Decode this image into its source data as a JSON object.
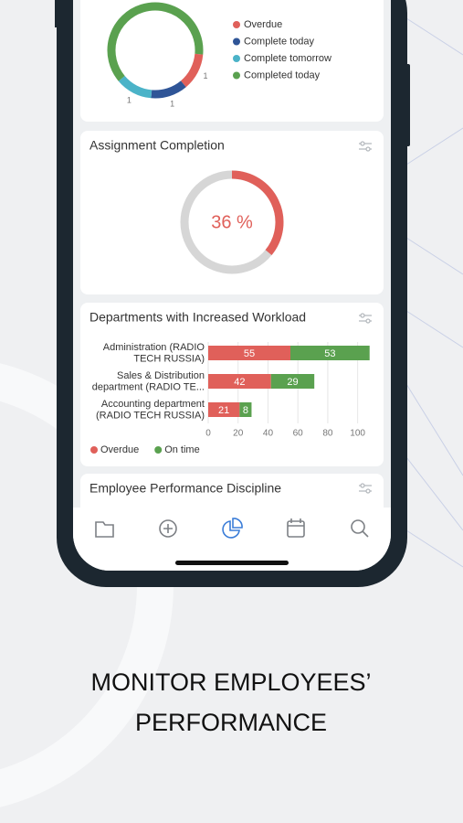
{
  "chart_data": [
    {
      "type": "donut",
      "categories": [
        "Overdue",
        "Complete today",
        "Complete tomorrow",
        "Completed today"
      ],
      "values": [
        1,
        1,
        1,
        5
      ],
      "colors": [
        "#e0605a",
        "#2f5597",
        "#4bb3c8",
        "#5aa14f"
      ],
      "labeled": [
        true,
        true,
        true,
        false
      ]
    },
    {
      "type": "gauge",
      "title": "Assignment Completion",
      "value": 36,
      "value_label": "36 %",
      "range": [
        0,
        100
      ],
      "color": "#e0605a",
      "track_color": "#d6d6d6"
    },
    {
      "type": "bar",
      "orientation": "horizontal",
      "stacked": true,
      "title": "Departments with Increased Workload",
      "categories": [
        [
          "Administration (RADIO",
          "TECH RUSSIA)"
        ],
        [
          "Sales & Distribution",
          "department (RADIO TE..."
        ],
        [
          "Accounting department",
          "(RADIO TECH RUSSIA)"
        ]
      ],
      "series": [
        {
          "name": "Overdue",
          "color": "#e0605a",
          "values": [
            55,
            42,
            21
          ]
        },
        {
          "name": "On time",
          "color": "#5aa14f",
          "values": [
            53,
            29,
            8
          ]
        }
      ],
      "xlim": [
        0,
        110
      ],
      "xticks": [
        0,
        20,
        40,
        60,
        80,
        100
      ],
      "grid": true,
      "legend": "bottom-left"
    }
  ],
  "next_card_title": "Employee Performance Discipline",
  "headline": [
    "MONITOR EMPLOYEES’",
    "PERFORMANCE"
  ]
}
